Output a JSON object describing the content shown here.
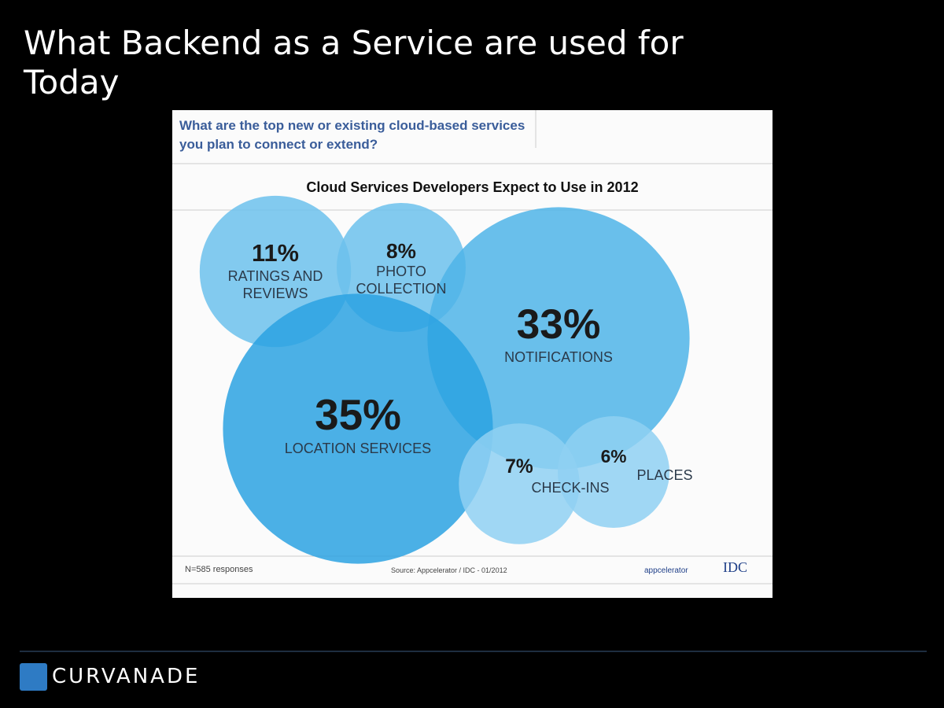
{
  "slide": {
    "title": "What Backend as a Service are used for Today",
    "brand": "CURVANADE"
  },
  "chart_data": {
    "type": "bubble",
    "question": "What are the top new or existing cloud-based services you plan to connect or extend?",
    "title": "Cloud Services Developers Expect to Use in 2012",
    "categories": [
      "RATINGS AND REVIEWS",
      "PHOTO COLLECTION",
      "NOTIFICATIONS",
      "LOCATION SERVICES",
      "CHECK-INS",
      "PLACES"
    ],
    "values": [
      11,
      8,
      33,
      35,
      7,
      6
    ],
    "value_labels": [
      "11%",
      "8%",
      "33%",
      "35%",
      "7%",
      "6%"
    ],
    "colors": [
      "#6cc1ec",
      "#6cc1ec",
      "#4fb4e8",
      "#2ba2e2",
      "#8fd0f2",
      "#8fd0f2"
    ],
    "note": "N=585 responses",
    "source": "Source: Appcelerator / IDC - 01/2012",
    "logos": [
      "appcelerator",
      "IDC"
    ]
  }
}
